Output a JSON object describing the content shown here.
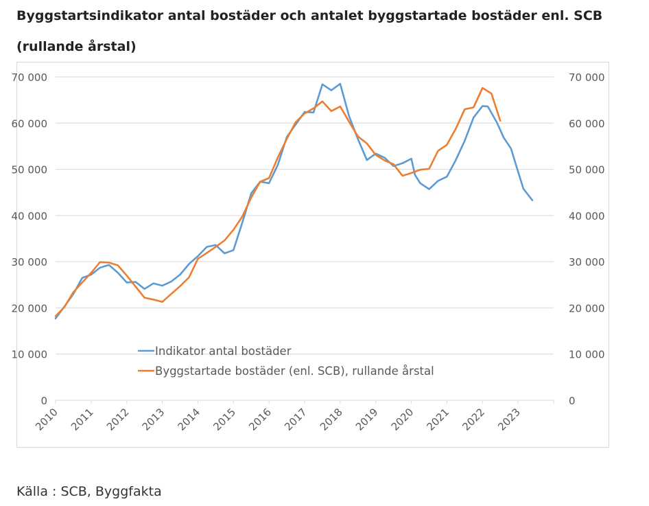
{
  "page": {
    "title_line1": "Byggstartsindikator antal bostäder och antalet byggstartade bostäder enl. SCB",
    "title_line2": "(rullande årstal)",
    "source": "Källa : SCB, Byggfakta"
  },
  "colors": {
    "indicator": "#5b9bd5",
    "scb": "#ed7d31",
    "grid": "#d9d9d9",
    "axis_text": "#595959"
  },
  "chart_data": {
    "type": "line",
    "title": "Byggstartsindikator antal bostäder och antalet byggstartade bostäder enl. SCB (rullande årstal)",
    "xlabel": "",
    "ylabel": "",
    "xlim": [
      2010,
      2024
    ],
    "ylim": [
      0,
      70000
    ],
    "x_ticks": [
      "2010",
      "2011",
      "2012",
      "2013",
      "2014",
      "2015",
      "2016",
      "2017",
      "2018",
      "2019",
      "2020",
      "2021",
      "2022",
      "2023"
    ],
    "y_ticks": [
      "0",
      "10 000",
      "20 000",
      "30 000",
      "40 000",
      "50 000",
      "60 000",
      "70 000"
    ],
    "y_ticks_right": [
      "0",
      "10 000",
      "20 000",
      "30 000",
      "40 000",
      "50 000",
      "60 000",
      "70 000"
    ],
    "grid": "horizontal",
    "legend_position": "bottom-left inside",
    "series": [
      {
        "name": "Indikator antal bostäder",
        "color": "#5b9bd5",
        "points": [
          [
            2010.0,
            17700
          ],
          [
            2010.25,
            20300
          ],
          [
            2010.5,
            23000
          ],
          [
            2010.75,
            26500
          ],
          [
            2011.0,
            27200
          ],
          [
            2011.25,
            28700
          ],
          [
            2011.5,
            29300
          ],
          [
            2011.75,
            27600
          ],
          [
            2012.0,
            25500
          ],
          [
            2012.25,
            25600
          ],
          [
            2012.5,
            24100
          ],
          [
            2012.75,
            25300
          ],
          [
            2013.0,
            24800
          ],
          [
            2013.25,
            25700
          ],
          [
            2013.5,
            27200
          ],
          [
            2013.75,
            29500
          ],
          [
            2014.0,
            31200
          ],
          [
            2014.25,
            33200
          ],
          [
            2014.5,
            33600
          ],
          [
            2014.75,
            31800
          ],
          [
            2015.0,
            32500
          ],
          [
            2015.25,
            38500
          ],
          [
            2015.5,
            44800
          ],
          [
            2015.75,
            47300
          ],
          [
            2016.0,
            47000
          ],
          [
            2016.25,
            51000
          ],
          [
            2016.5,
            57000
          ],
          [
            2016.75,
            59700
          ],
          [
            2017.0,
            62400
          ],
          [
            2017.25,
            62300
          ],
          [
            2017.5,
            68400
          ],
          [
            2017.75,
            67100
          ],
          [
            2018.0,
            68500
          ],
          [
            2018.25,
            61500
          ],
          [
            2018.5,
            56500
          ],
          [
            2018.75,
            52000
          ],
          [
            2019.0,
            53400
          ],
          [
            2019.25,
            52500
          ],
          [
            2019.5,
            50700
          ],
          [
            2019.75,
            51300
          ],
          [
            2020.0,
            52300
          ],
          [
            2020.1,
            48800
          ],
          [
            2020.25,
            47000
          ],
          [
            2020.5,
            45700
          ],
          [
            2020.75,
            47500
          ],
          [
            2021.0,
            48400
          ],
          [
            2021.25,
            52000
          ],
          [
            2021.5,
            56200
          ],
          [
            2021.75,
            61200
          ],
          [
            2022.0,
            63700
          ],
          [
            2022.15,
            63600
          ],
          [
            2022.4,
            60200
          ],
          [
            2022.6,
            56800
          ],
          [
            2022.8,
            54500
          ],
          [
            2023.0,
            49500
          ],
          [
            2023.15,
            45800
          ],
          [
            2023.4,
            43300
          ]
        ]
      },
      {
        "name": "Byggstartade bostäder (enl. SCB), rullande årstal",
        "color": "#ed7d31",
        "points": [
          [
            2010.0,
            18200
          ],
          [
            2010.25,
            20200
          ],
          [
            2010.5,
            23400
          ],
          [
            2010.75,
            25500
          ],
          [
            2011.0,
            27600
          ],
          [
            2011.25,
            29900
          ],
          [
            2011.5,
            29800
          ],
          [
            2011.75,
            29200
          ],
          [
            2012.0,
            27000
          ],
          [
            2012.25,
            24600
          ],
          [
            2012.5,
            22200
          ],
          [
            2012.75,
            21800
          ],
          [
            2013.0,
            21300
          ],
          [
            2013.25,
            23000
          ],
          [
            2013.5,
            24700
          ],
          [
            2013.75,
            26600
          ],
          [
            2014.0,
            30600
          ],
          [
            2014.25,
            31900
          ],
          [
            2014.5,
            33200
          ],
          [
            2014.75,
            34600
          ],
          [
            2015.0,
            36900
          ],
          [
            2015.25,
            39800
          ],
          [
            2015.5,
            43900
          ],
          [
            2015.75,
            47300
          ],
          [
            2016.0,
            48100
          ],
          [
            2016.25,
            52600
          ],
          [
            2016.5,
            56600
          ],
          [
            2016.75,
            60200
          ],
          [
            2017.0,
            62100
          ],
          [
            2017.25,
            63200
          ],
          [
            2017.5,
            64700
          ],
          [
            2017.75,
            62600
          ],
          [
            2018.0,
            63600
          ],
          [
            2018.25,
            60300
          ],
          [
            2018.5,
            57100
          ],
          [
            2018.75,
            55600
          ],
          [
            2019.0,
            53100
          ],
          [
            2019.25,
            51900
          ],
          [
            2019.5,
            51100
          ],
          [
            2019.75,
            48600
          ],
          [
            2020.0,
            49200
          ],
          [
            2020.25,
            49900
          ],
          [
            2020.5,
            50100
          ],
          [
            2020.75,
            54000
          ],
          [
            2021.0,
            55300
          ],
          [
            2021.25,
            58800
          ],
          [
            2021.5,
            63000
          ],
          [
            2021.75,
            63400
          ],
          [
            2022.0,
            67600
          ],
          [
            2022.25,
            66400
          ],
          [
            2022.5,
            60500
          ]
        ]
      }
    ]
  }
}
